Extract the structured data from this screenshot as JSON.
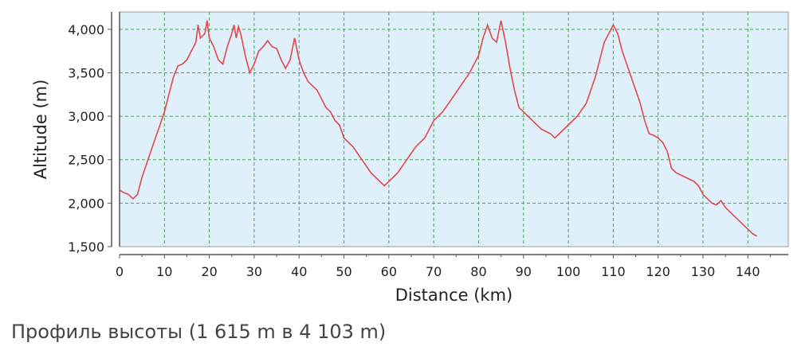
{
  "caption": "Профиль высоты (1 615 m в 4 103 m)",
  "colors": {
    "plot_background": "#dff0fa",
    "line": "#e2474b",
    "grid": "#4aa35a"
  },
  "chart_data": {
    "type": "line",
    "xlabel": "Distance (km)",
    "ylabel": "Altitude (m)",
    "xlim": [
      0,
      149
    ],
    "ylim": [
      1500,
      4200
    ],
    "x_ticks": [
      0,
      10,
      20,
      30,
      40,
      50,
      60,
      70,
      80,
      90,
      100,
      110,
      120,
      130,
      140
    ],
    "y_ticks": [
      1500,
      2000,
      2500,
      3000,
      3500,
      4000
    ],
    "y_tick_labels": [
      "1,500",
      "2,000",
      "2,500",
      "3,000",
      "3,500",
      "4,000"
    ],
    "grid": true,
    "series": [
      {
        "x": [
          0,
          1,
          2,
          3,
          4,
          5,
          6,
          7,
          8,
          9,
          10,
          11,
          12,
          13,
          14,
          15,
          16,
          17,
          17.5,
          18,
          19,
          19.5,
          20,
          21,
          22,
          23,
          24,
          25,
          25.5,
          26,
          26.5,
          27,
          28,
          29,
          30,
          31,
          32,
          33,
          34,
          35,
          36,
          37,
          38,
          39,
          40,
          41,
          42,
          43,
          44,
          45,
          46,
          47,
          48,
          49,
          50,
          52,
          54,
          56,
          58,
          59,
          60,
          62,
          64,
          66,
          68,
          70,
          72,
          74,
          76,
          78,
          80,
          81,
          82,
          83,
          84,
          85,
          86,
          87,
          88,
          89,
          90,
          92,
          94,
          96,
          97,
          98,
          100,
          102,
          104,
          106,
          107,
          108,
          109,
          110,
          111,
          112,
          113,
          114,
          115,
          116,
          117,
          118,
          119,
          120,
          121,
          122,
          123,
          124,
          126,
          128,
          129,
          130,
          131,
          132,
          133,
          134,
          135,
          136,
          137,
          138,
          139,
          140,
          141,
          142
        ],
        "y": [
          2150,
          2120,
          2100,
          2050,
          2100,
          2300,
          2450,
          2600,
          2750,
          2900,
          3050,
          3250,
          3450,
          3580,
          3600,
          3650,
          3750,
          3850,
          4050,
          3900,
          3950,
          4100,
          3900,
          3800,
          3650,
          3600,
          3800,
          3950,
          4050,
          3900,
          4030,
          3950,
          3700,
          3500,
          3600,
          3750,
          3800,
          3870,
          3800,
          3780,
          3650,
          3550,
          3650,
          3900,
          3650,
          3500,
          3400,
          3350,
          3300,
          3200,
          3100,
          3050,
          2950,
          2900,
          2750,
          2650,
          2500,
          2350,
          2250,
          2200,
          2250,
          2350,
          2500,
          2650,
          2750,
          2950,
          3050,
          3200,
          3350,
          3500,
          3700,
          3900,
          4050,
          3900,
          3850,
          4100,
          3850,
          3550,
          3300,
          3100,
          3050,
          2950,
          2850,
          2800,
          2750,
          2800,
          2900,
          3000,
          3150,
          3450,
          3650,
          3850,
          3950,
          4050,
          3950,
          3750,
          3600,
          3450,
          3300,
          3150,
          2950,
          2800,
          2780,
          2750,
          2700,
          2600,
          2400,
          2350,
          2300,
          2250,
          2200,
          2100,
          2050,
          2000,
          1980,
          2030,
          1950,
          1900,
          1850,
          1800,
          1750,
          1700,
          1650,
          1620
        ]
      }
    ]
  }
}
